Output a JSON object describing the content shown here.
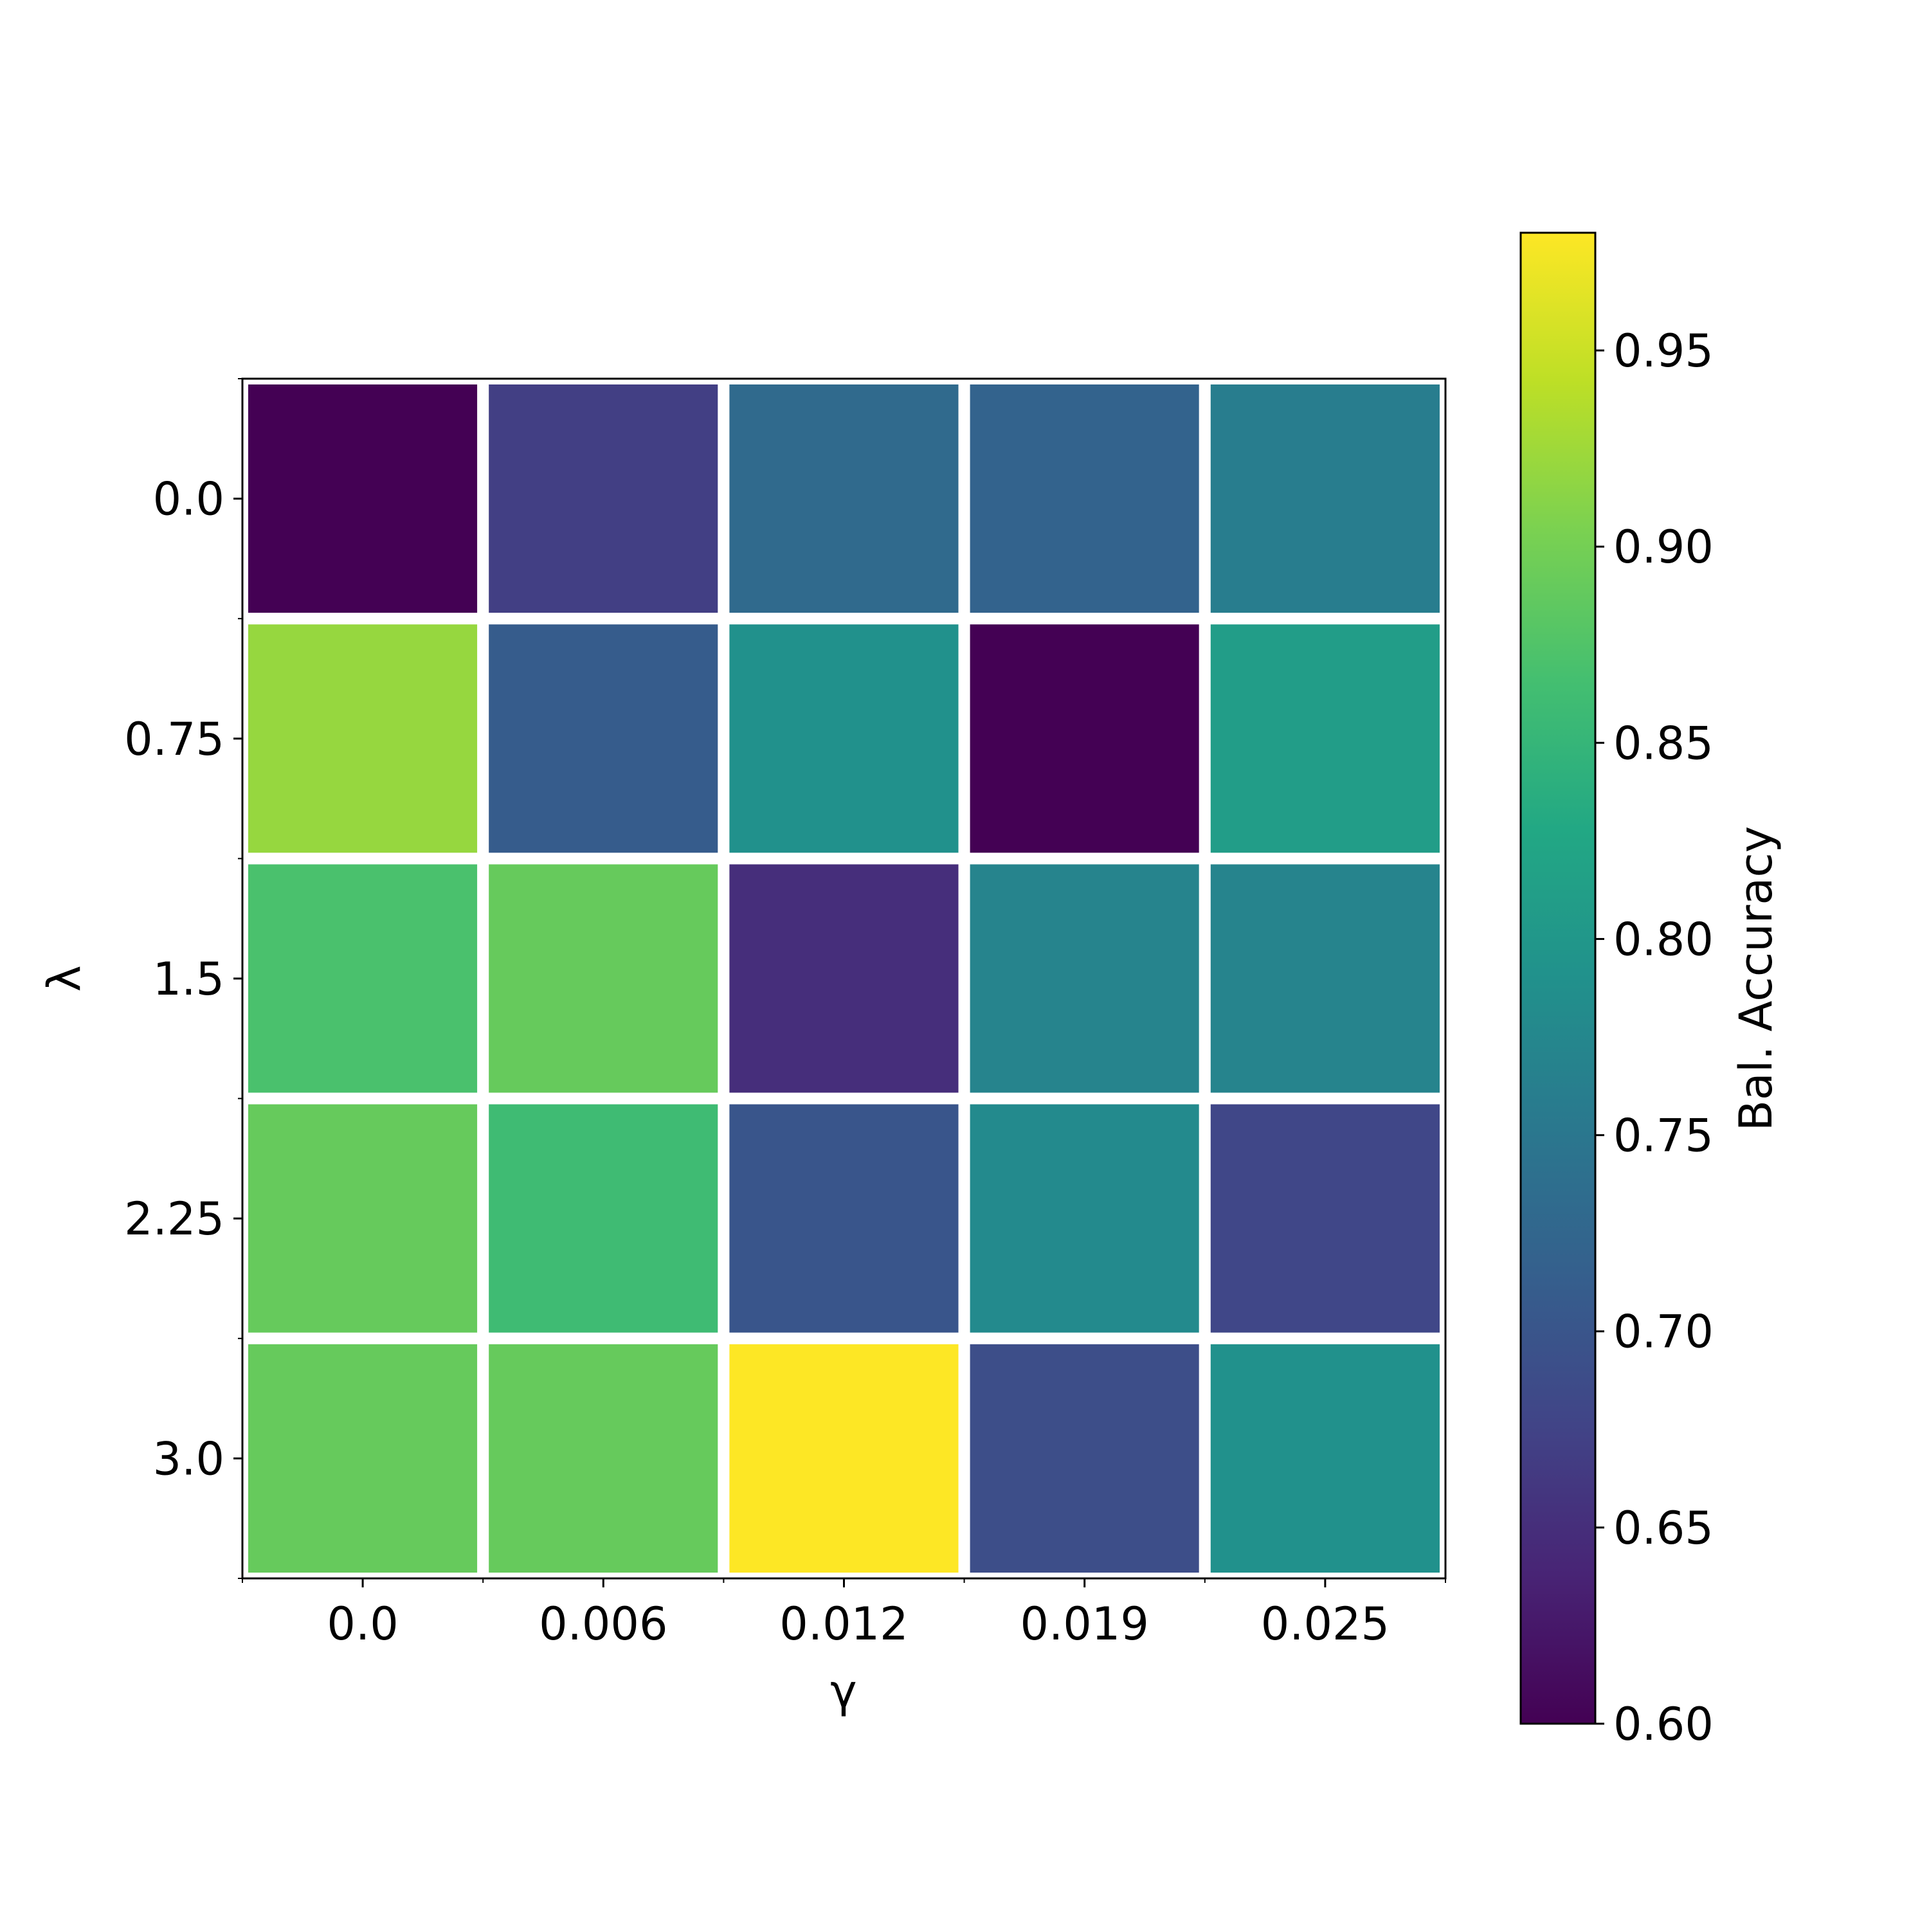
{
  "chart_data": {
    "type": "heatmap",
    "title": "",
    "xlabel": "γ",
    "ylabel": "λ",
    "x_categories": [
      "0.0",
      "0.006",
      "0.012",
      "0.019",
      "0.025"
    ],
    "y_categories": [
      "0.0",
      "0.75",
      "1.5",
      "2.25",
      "3.0"
    ],
    "values": [
      [
        0.6,
        0.67,
        0.73,
        0.72,
        0.76
      ],
      [
        0.92,
        0.71,
        0.79,
        0.6,
        0.81
      ],
      [
        0.87,
        0.89,
        0.65,
        0.77,
        0.77
      ],
      [
        0.89,
        0.86,
        0.7,
        0.78,
        0.68
      ],
      [
        0.89,
        0.89,
        0.98,
        0.69,
        0.79
      ]
    ],
    "colorbar": {
      "label": "Bal. Accuracy",
      "min": 0.6,
      "max": 0.98,
      "ticks": [
        "0.60",
        "0.65",
        "0.70",
        "0.75",
        "0.80",
        "0.85",
        "0.90",
        "0.95"
      ],
      "colormap": "viridis"
    },
    "cell_border_color": "#ffffff",
    "grid": false
  }
}
